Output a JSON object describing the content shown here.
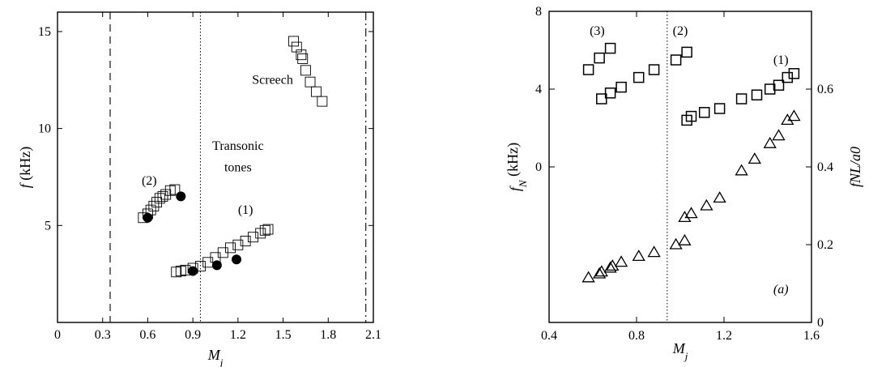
{
  "chart_data": [
    {
      "type": "scatter",
      "panel": "left",
      "xlabel": "M",
      "xlabel_sub": "j",
      "ylabel_var": "f",
      "ylabel_unit": "(kHz)",
      "xlim": [
        0,
        2.1
      ],
      "ylim": [
        0,
        16
      ],
      "xticks": [
        0,
        0.3,
        0.6,
        0.9,
        1.2,
        1.5,
        1.8,
        2.1
      ],
      "xtick_labels": [
        "0",
        "0.3",
        "0.6",
        "0.9",
        "1.2",
        "1.5",
        "1.8",
        "2.1"
      ],
      "yticks": [
        5,
        10,
        15
      ],
      "ytick_labels": [
        "5",
        "10",
        "15"
      ],
      "grid": false,
      "vlines": [
        {
          "x": 0.35,
          "style": "dashed"
        },
        {
          "x": 0.95,
          "style": "dotted"
        },
        {
          "x": 2.05,
          "style": "dashdot"
        }
      ],
      "series": [
        {
          "marker": "open-square",
          "points": [
            [
              0.57,
              5.4
            ],
            [
              0.6,
              5.6
            ],
            [
              0.62,
              5.8
            ],
            [
              0.64,
              6.0
            ],
            [
              0.66,
              6.2
            ],
            [
              0.68,
              6.4
            ],
            [
              0.7,
              6.5
            ],
            [
              0.72,
              6.6
            ],
            [
              0.75,
              6.8
            ],
            [
              0.78,
              6.85
            ],
            [
              0.79,
              2.6
            ],
            [
              0.82,
              2.65
            ],
            [
              0.85,
              2.7
            ],
            [
              0.9,
              2.8
            ],
            [
              0.95,
              2.9
            ],
            [
              1.0,
              3.1
            ],
            [
              1.05,
              3.35
            ],
            [
              1.1,
              3.6
            ],
            [
              1.15,
              3.85
            ],
            [
              1.2,
              4.0
            ],
            [
              1.25,
              4.2
            ],
            [
              1.3,
              4.4
            ],
            [
              1.35,
              4.6
            ],
            [
              1.38,
              4.75
            ],
            [
              1.4,
              4.8
            ],
            [
              1.57,
              14.5
            ],
            [
              1.59,
              14.2
            ],
            [
              1.62,
              13.8
            ],
            [
              1.63,
              13.6
            ],
            [
              1.65,
              13.0
            ],
            [
              1.68,
              12.4
            ],
            [
              1.72,
              11.9
            ],
            [
              1.76,
              11.4
            ]
          ]
        },
        {
          "marker": "filled-circle",
          "points": [
            [
              0.6,
              5.4
            ],
            [
              0.82,
              6.5
            ],
            [
              0.9,
              2.65
            ],
            [
              1.06,
              2.95
            ],
            [
              1.19,
              3.25
            ]
          ]
        }
      ],
      "annotations": [
        {
          "text": "(2)",
          "x": 0.61,
          "y": 7.1
        },
        {
          "text": "Transonic",
          "x": 1.2,
          "y": 8.9
        },
        {
          "text": "tones",
          "x": 1.2,
          "y": 7.8
        },
        {
          "text": "(1)",
          "x": 1.25,
          "y": 5.6
        },
        {
          "text": "Screech",
          "x": 1.43,
          "y": 12.3
        }
      ]
    },
    {
      "type": "scatter",
      "panel": "right",
      "xlabel": "M",
      "xlabel_sub": "j",
      "ylabel_var": "f",
      "ylabel_sub": "N",
      "ylabel_unit": "(kHz)",
      "y2label": "fNL/a0",
      "xlim": [
        0.4,
        1.6
      ],
      "ylim": [
        -8,
        8
      ],
      "xticks": [
        0.4,
        0.8,
        1.2,
        1.6
      ],
      "xtick_labels": [
        "0.4",
        "0.8",
        "1.2",
        "1.6"
      ],
      "yticks": [
        0,
        4,
        8
      ],
      "ytick_labels": [
        "0",
        "4",
        "8"
      ],
      "y2lim": [
        0.0,
        0.8
      ],
      "y2ticks": [
        0,
        0.2,
        0.4,
        0.6
      ],
      "y2tick_labels": [
        "0",
        "0.2",
        "0.4",
        "0.6"
      ],
      "grid": false,
      "vlines": [
        {
          "x": 0.94,
          "style": "dotted"
        }
      ],
      "series": [
        {
          "marker": "open-square",
          "axis": "left",
          "points": [
            [
              0.58,
              5.0
            ],
            [
              0.63,
              5.6
            ],
            [
              0.68,
              6.1
            ],
            [
              0.64,
              3.5
            ],
            [
              0.68,
              3.8
            ],
            [
              0.73,
              4.1
            ],
            [
              0.81,
              4.6
            ],
            [
              0.88,
              5.0
            ],
            [
              0.98,
              5.5
            ],
            [
              1.03,
              5.9
            ],
            [
              1.03,
              2.4
            ],
            [
              1.05,
              2.6
            ],
            [
              1.11,
              2.8
            ],
            [
              1.18,
              3.0
            ],
            [
              1.28,
              3.5
            ],
            [
              1.35,
              3.7
            ],
            [
              1.41,
              4.0
            ],
            [
              1.45,
              4.2
            ],
            [
              1.49,
              4.6
            ],
            [
              1.52,
              4.8
            ]
          ]
        },
        {
          "marker": "open-triangle",
          "axis": "right",
          "points": [
            [
              0.58,
              0.115
            ],
            [
              0.63,
              0.125
            ],
            [
              0.64,
              0.13
            ],
            [
              0.68,
              0.14
            ],
            [
              0.69,
              0.145
            ],
            [
              0.73,
              0.155
            ],
            [
              0.81,
              0.17
            ],
            [
              0.88,
              0.18
            ],
            [
              0.98,
              0.2
            ],
            [
              1.02,
              0.21
            ],
            [
              1.02,
              0.27
            ],
            [
              1.05,
              0.28
            ],
            [
              1.12,
              0.3
            ],
            [
              1.18,
              0.32
            ],
            [
              1.28,
              0.39
            ],
            [
              1.34,
              0.42
            ],
            [
              1.41,
              0.46
            ],
            [
              1.45,
              0.48
            ],
            [
              1.49,
              0.52
            ],
            [
              1.52,
              0.53
            ]
          ]
        }
      ],
      "annotations": [
        {
          "text": "(3)",
          "x": 0.62,
          "y": 6.8
        },
        {
          "text": "(2)",
          "x": 1.0,
          "y": 6.8
        },
        {
          "text": "(1)",
          "x": 1.46,
          "y": 5.3
        },
        {
          "text": "(a)",
          "x": 1.46,
          "y": -6.5
        }
      ]
    }
  ]
}
